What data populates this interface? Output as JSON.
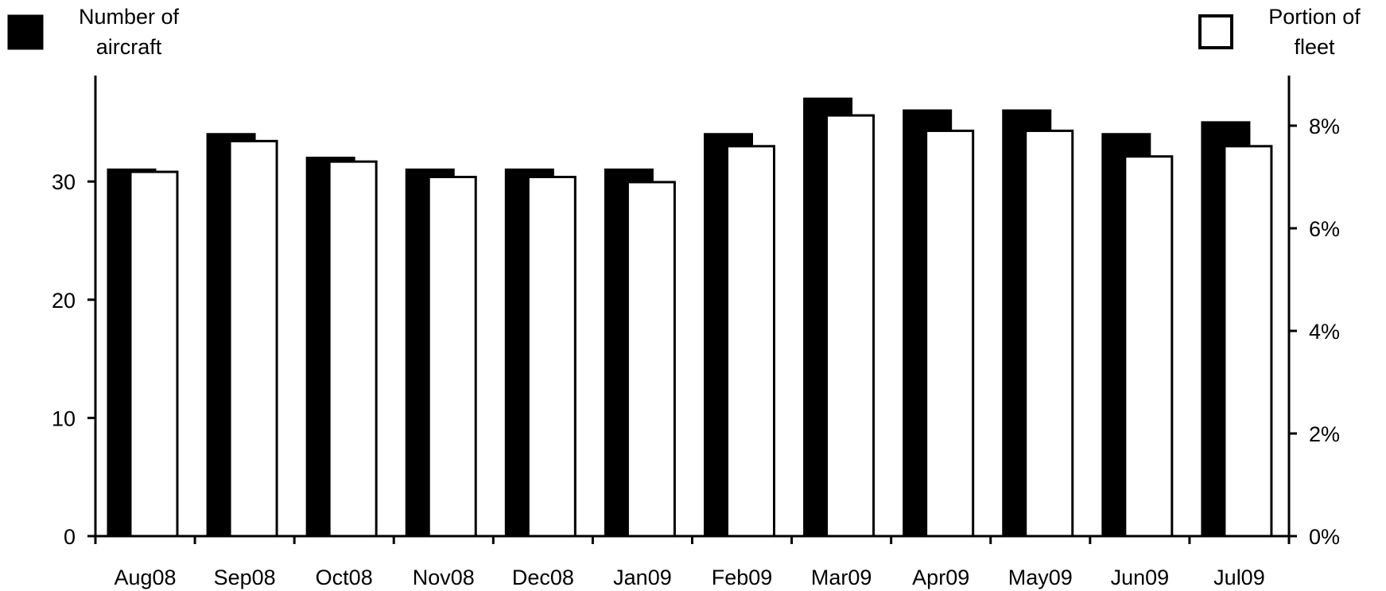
{
  "chart_data": {
    "type": "bar",
    "categories": [
      "Aug08",
      "Sep08",
      "Oct08",
      "Nov08",
      "Dec08",
      "Jan09",
      "Feb09",
      "Mar09",
      "Apr09",
      "May09",
      "Jun09",
      "Jul09"
    ],
    "series": [
      {
        "legend_label": "Number of aircraft",
        "axis": "left",
        "fill": "#000000",
        "values": [
          31,
          34,
          32,
          31,
          31,
          31,
          34,
          37,
          36,
          36,
          34,
          35
        ]
      },
      {
        "legend_label": "Portion of fleet",
        "axis": "right",
        "fill": "#ffffff",
        "values": [
          7.1,
          7.7,
          7.3,
          7.0,
          7.0,
          6.9,
          7.6,
          8.2,
          7.9,
          7.9,
          7.4,
          7.6
        ]
      }
    ],
    "y_left": {
      "min": 0,
      "max": 39.3,
      "ticks": [
        0,
        10,
        20,
        30
      ],
      "tick_labels": [
        "0",
        "10",
        "20",
        "30"
      ]
    },
    "y_right": {
      "min": 0,
      "max": 9.06,
      "ticks": [
        0,
        2,
        4,
        6,
        8
      ],
      "tick_labels": [
        "0%",
        "2%",
        "4%",
        "6%",
        "8%"
      ]
    },
    "grid": false,
    "legend": [
      {
        "lines": [
          "Number of",
          "aircraft"
        ],
        "position": "top-left",
        "swatch_fill": "#000000"
      },
      {
        "lines": [
          "Portion of",
          "fleet"
        ],
        "position": "top-right",
        "swatch_fill": "#ffffff"
      }
    ]
  }
}
